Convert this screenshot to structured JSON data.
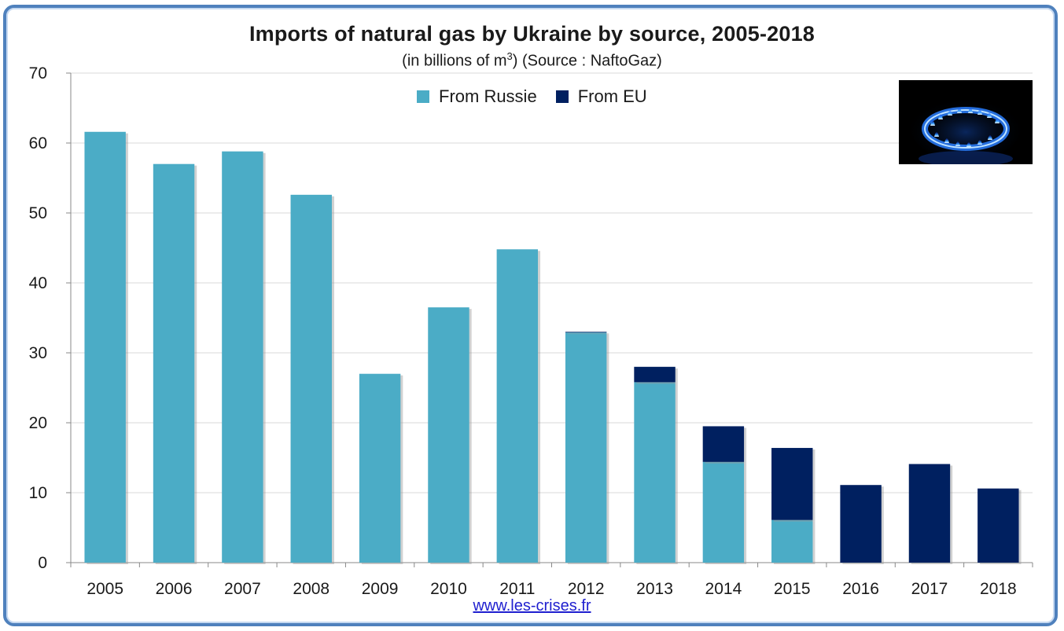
{
  "header": {
    "title": "Imports of natural gas by Ukraine by source, 2005-2018",
    "subtitle_pre": "(in billions of m",
    "subtitle_sup": "3",
    "subtitle_post": ") (Source : NaftoGaz)"
  },
  "legend": {
    "items": [
      {
        "label": "From Russie",
        "color": "#4bacc6"
      },
      {
        "label": "From EU",
        "color": "#002060"
      }
    ]
  },
  "image": {
    "icon": "gas-burner-flame-icon"
  },
  "footer": {
    "link": "www.les-crises.fr"
  },
  "chart_data": {
    "type": "bar",
    "stacked": true,
    "title": "Imports of natural gas by Ukraine by source, 2005-2018",
    "categories": [
      "2005",
      "2006",
      "2007",
      "2008",
      "2009",
      "2010",
      "2011",
      "2012",
      "2013",
      "2014",
      "2015",
      "2016",
      "2017",
      "2018"
    ],
    "series": [
      {
        "name": "From Russie",
        "color": "#4bacc6",
        "values": [
          61.6,
          57.0,
          58.8,
          52.6,
          27.0,
          36.5,
          44.8,
          32.9,
          25.8,
          14.4,
          6.1,
          0,
          0,
          0
        ]
      },
      {
        "name": "From EU",
        "color": "#002060",
        "values": [
          0,
          0,
          0,
          0,
          0,
          0,
          0,
          0.1,
          2.2,
          5.1,
          10.3,
          11.1,
          14.1,
          10.6
        ]
      }
    ],
    "ylim": [
      0,
      70
    ],
    "yticks": [
      0,
      10,
      20,
      30,
      40,
      50,
      60,
      70
    ],
    "grid": true,
    "legend_position": "top-center"
  }
}
